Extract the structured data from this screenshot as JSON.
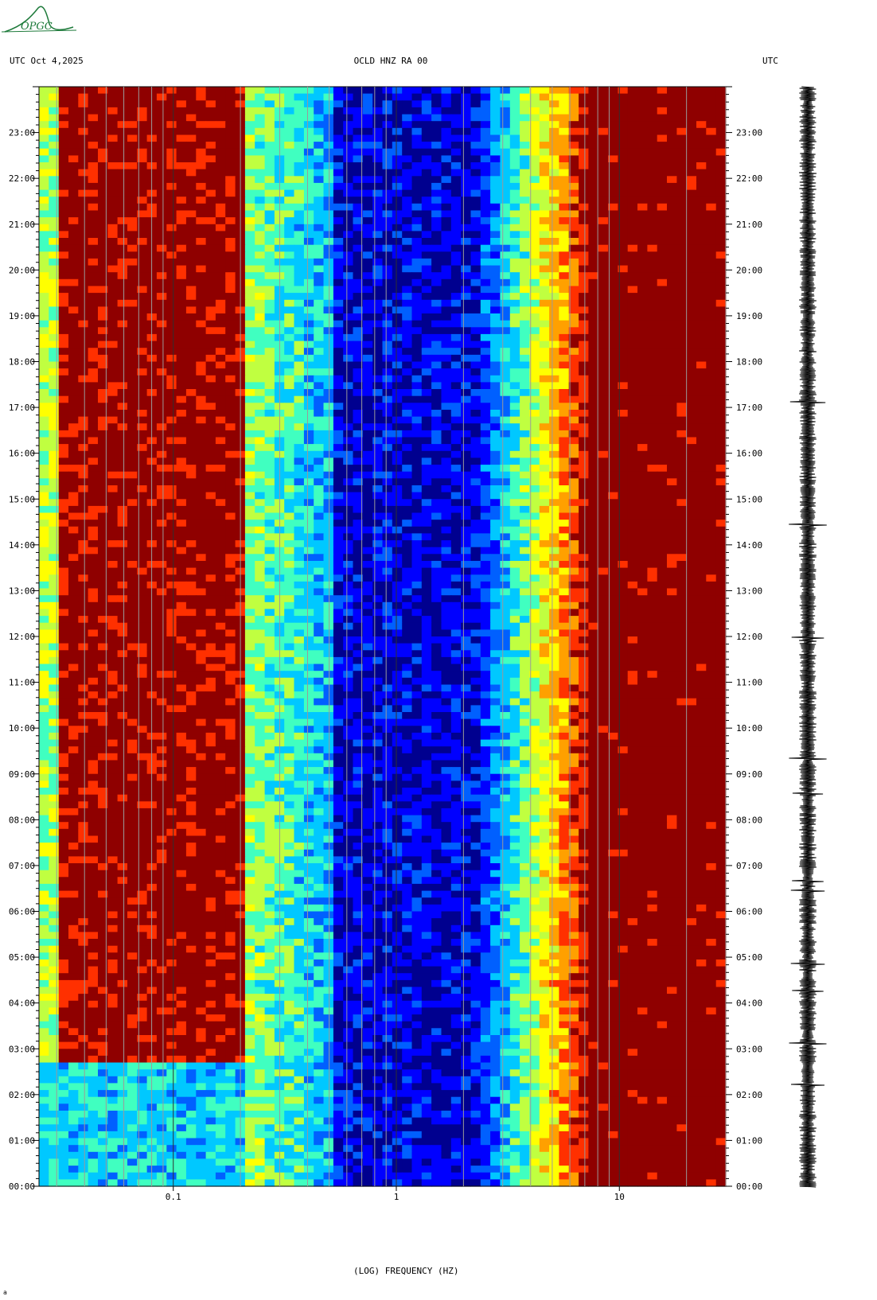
{
  "header": {
    "left": "UTC  Oct 4,2025",
    "center": "OCLD HNZ RA 00",
    "right": "UTC"
  },
  "logo": {
    "text": "OPGC"
  },
  "footnote": "a",
  "colors": {
    "scale": [
      "#00008f",
      "#0000ff",
      "#0060ff",
      "#00c8ff",
      "#40ffc0",
      "#c0ff40",
      "#ffff00",
      "#ffa000",
      "#ff3000",
      "#8f0000"
    ]
  },
  "chart_data": {
    "type": "heatmap",
    "title": "OCLD HNZ RA 00",
    "xlabel": "(LOG) FREQUENCY (HZ)",
    "ylabel": "UTC",
    "x_scale": "log",
    "xlim": [
      0.025,
      30
    ],
    "x_tick_labels": [
      {
        "value": 0.1,
        "label": "0.1"
      },
      {
        "value": 1,
        "label": "1"
      },
      {
        "value": 10,
        "label": "10"
      }
    ],
    "y_tick_labels": [
      "00:00",
      "01:00",
      "02:00",
      "03:00",
      "04:00",
      "05:00",
      "06:00",
      "07:00",
      "08:00",
      "09:00",
      "10:00",
      "11:00",
      "12:00",
      "13:00",
      "14:00",
      "15:00",
      "16:00",
      "17:00",
      "18:00",
      "19:00",
      "20:00",
      "21:00",
      "22:00",
      "23:00"
    ],
    "ylim_hours": [
      0,
      24
    ],
    "colormap": "jet",
    "description_bands": [
      {
        "from_hz": 0.025,
        "to_hz": 0.2,
        "level": "high"
      },
      {
        "from_hz": 0.2,
        "to_hz": 0.5,
        "level": "medium"
      },
      {
        "from_hz": 0.5,
        "to_hz": 2.5,
        "level": "low"
      },
      {
        "from_hz": 2.5,
        "to_hz": 7,
        "level": "rising"
      },
      {
        "from_hz": 7,
        "to_hz": 30,
        "level": "saturated"
      }
    ]
  }
}
